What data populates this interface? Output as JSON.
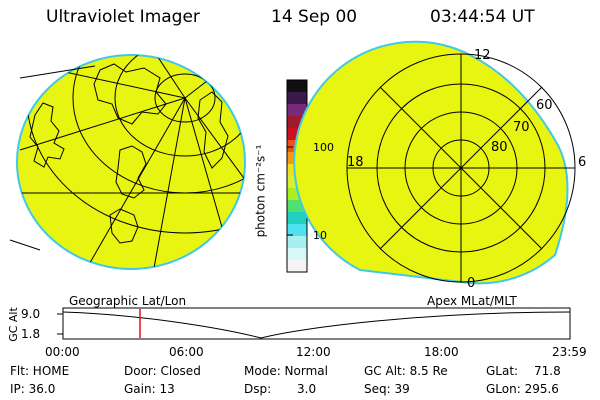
{
  "header": {
    "instrument": "Ultraviolet Imager",
    "date": "14 Sep 00",
    "time": "03:44:54 UT"
  },
  "colorbar": {
    "unit": "photon cm⁻²s⁻¹",
    "ticks": [
      "100",
      "10"
    ],
    "colors": [
      "#101010",
      "#3a1a4a",
      "#7a2a7a",
      "#a01a2a",
      "#d01020",
      "#f05010",
      "#f39a10",
      "#f0e020",
      "#d8f030",
      "#a8f020",
      "#50e070",
      "#20d0c0",
      "#50e0f0",
      "#a8f0f0",
      "#d8f8f8",
      "#f4f4f4"
    ]
  },
  "left_map": {
    "caption": "Geographic Lat/Lon",
    "fill_color": "#e8f510"
  },
  "right_map": {
    "caption": "Apex MLat/MLT",
    "fill_color": "#e8f510",
    "labels": {
      "mlt_top": "12",
      "mlt_left": "18",
      "mlt_right": "6",
      "mlt_bottom": "0",
      "lat_60": "60",
      "lat_70": "70",
      "lat_80": "80"
    }
  },
  "altitude_plot": {
    "ylabel": "GC Alt",
    "yticks": [
      "9.0",
      "1.8"
    ],
    "xticks": [
      "00:00",
      "06:00",
      "12:00",
      "18:00",
      "23:59"
    ],
    "marker_color": "#e01010"
  },
  "status": {
    "filter_label": "Flt: HOME",
    "ip_label": "IP: 36.0",
    "door_label": "Door: Closed",
    "gain_label": "Gain: 13",
    "mode_label": "Mode: Normal",
    "dsp_label": "Dsp:",
    "dsp_value": "3.0",
    "gcalt_label": "GC Alt: 8.5 Re",
    "seq_label": "Seq: 39",
    "glat_label": "GLat:",
    "glat_value": "71.8",
    "glon_label": "GLon: 295.6"
  }
}
